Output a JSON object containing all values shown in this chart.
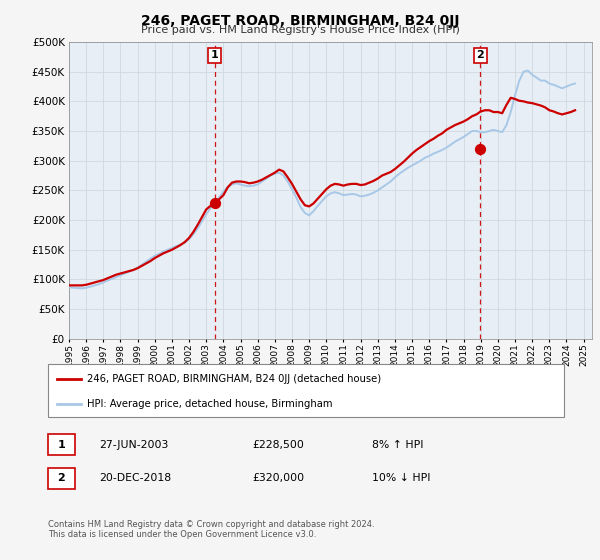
{
  "title": "246, PAGET ROAD, BIRMINGHAM, B24 0JJ",
  "subtitle": "Price paid vs. HM Land Registry's House Price Index (HPI)",
  "hpi_color": "#a8c8e8",
  "price_color": "#cc0000",
  "marker_color": "#cc0000",
  "background_color": "#f5f5f5",
  "plot_bg": "#e8eef5",
  "grid_color": "#d0d8e0",
  "ylim": [
    0,
    500000
  ],
  "yticks": [
    0,
    50000,
    100000,
    150000,
    200000,
    250000,
    300000,
    350000,
    400000,
    450000,
    500000
  ],
  "xlim_start": 1995.0,
  "xlim_end": 2025.5,
  "xtick_years": [
    1995,
    1996,
    1997,
    1998,
    1999,
    2000,
    2001,
    2002,
    2003,
    2004,
    2005,
    2006,
    2007,
    2008,
    2009,
    2010,
    2011,
    2012,
    2013,
    2014,
    2015,
    2016,
    2017,
    2018,
    2019,
    2020,
    2021,
    2022,
    2023,
    2024,
    2025
  ],
  "marker1_x": 2003.49,
  "marker1_y": 228500,
  "marker2_x": 2018.97,
  "marker2_y": 320000,
  "vline1_x": 2003.49,
  "vline2_x": 2018.97,
  "legend_label_price": "246, PAGET ROAD, BIRMINGHAM, B24 0JJ (detached house)",
  "legend_label_hpi": "HPI: Average price, detached house, Birmingham",
  "annotation1_label": "1",
  "annotation2_label": "2",
  "table_rows": [
    {
      "num": "1",
      "date": "27-JUN-2003",
      "price": "£228,500",
      "pct": "8% ↑ HPI"
    },
    {
      "num": "2",
      "date": "20-DEC-2018",
      "price": "£320,000",
      "pct": "10% ↓ HPI"
    }
  ],
  "footer_text": "Contains HM Land Registry data © Crown copyright and database right 2024.\nThis data is licensed under the Open Government Licence v3.0.",
  "hpi_data_x": [
    1995.0,
    1995.25,
    1995.5,
    1995.75,
    1996.0,
    1996.25,
    1996.5,
    1996.75,
    1997.0,
    1997.25,
    1997.5,
    1997.75,
    1998.0,
    1998.25,
    1998.5,
    1998.75,
    1999.0,
    1999.25,
    1999.5,
    1999.75,
    2000.0,
    2000.25,
    2000.5,
    2000.75,
    2001.0,
    2001.25,
    2001.5,
    2001.75,
    2002.0,
    2002.25,
    2002.5,
    2002.75,
    2003.0,
    2003.25,
    2003.5,
    2003.75,
    2004.0,
    2004.25,
    2004.5,
    2004.75,
    2005.0,
    2005.25,
    2005.5,
    2005.75,
    2006.0,
    2006.25,
    2006.5,
    2006.75,
    2007.0,
    2007.25,
    2007.5,
    2007.75,
    2008.0,
    2008.25,
    2008.5,
    2008.75,
    2009.0,
    2009.25,
    2009.5,
    2009.75,
    2010.0,
    2010.25,
    2010.5,
    2010.75,
    2011.0,
    2011.25,
    2011.5,
    2011.75,
    2012.0,
    2012.25,
    2012.5,
    2012.75,
    2013.0,
    2013.25,
    2013.5,
    2013.75,
    2014.0,
    2014.25,
    2014.5,
    2014.75,
    2015.0,
    2015.25,
    2015.5,
    2015.75,
    2016.0,
    2016.25,
    2016.5,
    2016.75,
    2017.0,
    2017.25,
    2017.5,
    2017.75,
    2018.0,
    2018.25,
    2018.5,
    2018.75,
    2019.0,
    2019.25,
    2019.5,
    2019.75,
    2020.0,
    2020.25,
    2020.5,
    2020.75,
    2021.0,
    2021.25,
    2021.5,
    2021.75,
    2022.0,
    2022.25,
    2022.5,
    2022.75,
    2023.0,
    2023.25,
    2023.5,
    2023.75,
    2024.0,
    2024.25,
    2024.5
  ],
  "hpi_data_y": [
    87000,
    86000,
    85500,
    85000,
    86000,
    88000,
    90000,
    92000,
    95000,
    98000,
    101000,
    104000,
    107000,
    110000,
    113000,
    116000,
    120000,
    125000,
    130000,
    135000,
    140000,
    143000,
    147000,
    150000,
    153000,
    156000,
    159000,
    162000,
    168000,
    176000,
    186000,
    198000,
    210000,
    220000,
    228000,
    238000,
    248000,
    256000,
    260000,
    262000,
    260000,
    258000,
    257000,
    258000,
    260000,
    265000,
    270000,
    275000,
    278000,
    280000,
    275000,
    265000,
    252000,
    238000,
    222000,
    212000,
    208000,
    215000,
    224000,
    232000,
    240000,
    245000,
    247000,
    245000,
    242000,
    243000,
    244000,
    243000,
    240000,
    241000,
    243000,
    246000,
    250000,
    255000,
    260000,
    265000,
    272000,
    278000,
    283000,
    288000,
    292000,
    296000,
    300000,
    305000,
    308000,
    312000,
    315000,
    318000,
    322000,
    327000,
    332000,
    336000,
    340000,
    345000,
    350000,
    350000,
    348000,
    348000,
    350000,
    352000,
    350000,
    348000,
    360000,
    382000,
    410000,
    435000,
    450000,
    452000,
    445000,
    440000,
    435000,
    435000,
    430000,
    428000,
    425000,
    422000,
    425000,
    428000,
    430000
  ],
  "price_data_x": [
    1995.0,
    1995.25,
    1995.5,
    1995.75,
    1996.0,
    1996.25,
    1996.5,
    1996.75,
    1997.0,
    1997.25,
    1997.5,
    1997.75,
    1998.0,
    1998.25,
    1998.5,
    1998.75,
    1999.0,
    1999.25,
    1999.5,
    1999.75,
    2000.0,
    2000.25,
    2000.5,
    2000.75,
    2001.0,
    2001.25,
    2001.5,
    2001.75,
    2002.0,
    2002.25,
    2002.5,
    2002.75,
    2003.0,
    2003.25,
    2003.5,
    2003.75,
    2004.0,
    2004.25,
    2004.5,
    2004.75,
    2005.0,
    2005.25,
    2005.5,
    2005.75,
    2006.0,
    2006.25,
    2006.5,
    2006.75,
    2007.0,
    2007.25,
    2007.5,
    2007.75,
    2008.0,
    2008.25,
    2008.5,
    2008.75,
    2009.0,
    2009.25,
    2009.5,
    2009.75,
    2010.0,
    2010.25,
    2010.5,
    2010.75,
    2011.0,
    2011.25,
    2011.5,
    2011.75,
    2012.0,
    2012.25,
    2012.5,
    2012.75,
    2013.0,
    2013.25,
    2013.5,
    2013.75,
    2014.0,
    2014.25,
    2014.5,
    2014.75,
    2015.0,
    2015.25,
    2015.5,
    2015.75,
    2016.0,
    2016.25,
    2016.5,
    2016.75,
    2017.0,
    2017.25,
    2017.5,
    2017.75,
    2018.0,
    2018.25,
    2018.5,
    2018.75,
    2019.0,
    2019.25,
    2019.5,
    2019.75,
    2020.0,
    2020.25,
    2020.5,
    2020.75,
    2021.0,
    2021.25,
    2021.5,
    2021.75,
    2022.0,
    2022.25,
    2022.5,
    2022.75,
    2023.0,
    2023.25,
    2023.5,
    2023.75,
    2024.0,
    2024.25,
    2024.5
  ],
  "price_data_y": [
    90000,
    90000,
    90000,
    90000,
    91000,
    93000,
    95000,
    97000,
    99000,
    102000,
    105000,
    108000,
    110000,
    112000,
    114000,
    116000,
    119000,
    123000,
    127000,
    131000,
    136000,
    140000,
    144000,
    147000,
    150000,
    154000,
    158000,
    163000,
    170000,
    180000,
    192000,
    205000,
    218000,
    224000,
    228500,
    235000,
    242000,
    255000,
    263000,
    265000,
    265000,
    264000,
    262000,
    263000,
    265000,
    268000,
    272000,
    276000,
    280000,
    285000,
    282000,
    272000,
    261000,
    248000,
    235000,
    225000,
    223000,
    228000,
    236000,
    244000,
    252000,
    258000,
    261000,
    260000,
    258000,
    260000,
    261000,
    261000,
    259000,
    260000,
    263000,
    266000,
    270000,
    275000,
    278000,
    281000,
    286000,
    292000,
    298000,
    305000,
    312000,
    318000,
    323000,
    328000,
    333000,
    337000,
    342000,
    346000,
    352000,
    356000,
    360000,
    363000,
    366000,
    370000,
    375000,
    378000,
    383000,
    385000,
    385000,
    382000,
    382000,
    380000,
    394000,
    406000,
    404000,
    401000,
    400000,
    398000,
    397000,
    395000,
    393000,
    390000,
    385000,
    383000,
    380000,
    378000,
    380000,
    382000,
    385000
  ]
}
